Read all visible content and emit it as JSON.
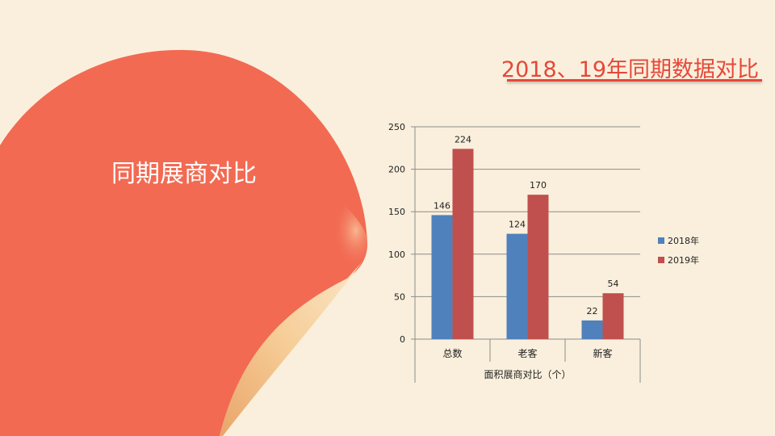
{
  "header": {
    "title": "2018、19年同期数据对比"
  },
  "curl": {
    "title": "同期展商对比"
  },
  "colors": {
    "accent": "#e5483a",
    "curl_red": "#f26a52",
    "curl_fold": "#f0bb80",
    "background": "#faefdc"
  },
  "chart_data": {
    "type": "bar",
    "categories": [
      "总数",
      "老客",
      "新客"
    ],
    "series": [
      {
        "name": "2018年",
        "values": [
          146,
          124,
          22
        ],
        "color": "#4f81bd"
      },
      {
        "name": "2019年",
        "values": [
          224,
          170,
          54
        ],
        "color": "#c0504d"
      }
    ],
    "xlabel": "面积展商对比（个）",
    "ylabel": "",
    "ylim": [
      0,
      250
    ],
    "yticks": [
      0,
      50,
      100,
      150,
      200,
      250
    ],
    "grid": true,
    "legend": "right"
  }
}
